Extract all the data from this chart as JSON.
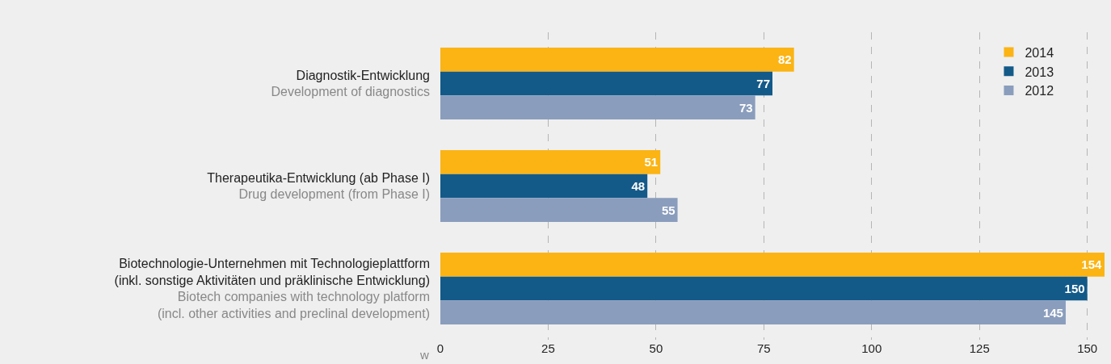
{
  "chart_data": {
    "type": "bar",
    "orientation": "horizontal",
    "categories": [
      "Diagnostik-Entwicklung\nDevelopment of diagnostics",
      "Therapeutika-Entwicklung (ab Phase I)\nDrug development (from Phase I)",
      "Biotechnologie-Unternehmen mit Technologieplattform\n(inkl. sonstige Aktivitäten und präklinische Entwicklung)\nBiotech companies with technology platform\n(incl. other activities and preclinal development)"
    ],
    "series": [
      {
        "name": "2014",
        "color": "#fbb414",
        "values": [
          82,
          51,
          154
        ]
      },
      {
        "name": "2013",
        "color": "#135a89",
        "values": [
          77,
          48,
          150
        ]
      },
      {
        "name": "2012",
        "color": "#8a9dbd",
        "values": [
          73,
          55,
          145
        ]
      }
    ],
    "xlim": [
      0,
      154
    ],
    "xticks": [
      0,
      25,
      50,
      75,
      100,
      125,
      150
    ],
    "grid": "x",
    "legend": "top right",
    "data_labels": true,
    "annotations": [
      "w"
    ]
  }
}
